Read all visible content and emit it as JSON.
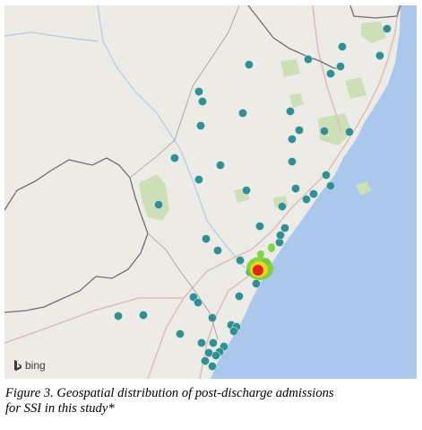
{
  "map": {
    "attribution": "bing",
    "attribution_icon": "bing-logo-icon",
    "colors": {
      "land": "#ecebe6",
      "ocean": "#a9c8ec",
      "park": "#cddfb6",
      "border": "#6f6f6f",
      "road": "#e0bfb6",
      "river": "#b7cfe6",
      "marker": "#2f8f92",
      "heat_low": "#74d431",
      "heat_mid": "#f3d21b",
      "heat_high": "#e0241a"
    }
  },
  "caption": {
    "line1": "Figure 3. Geospatial distribution of post-discharge admissions",
    "line2": "for SSI in this study*"
  }
}
